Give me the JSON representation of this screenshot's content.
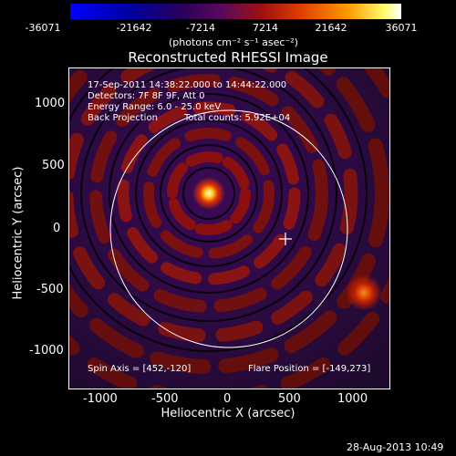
{
  "colorbar": {
    "ticks": [
      "-36071",
      "-21642",
      "-7214",
      "7214",
      "21642",
      "36071"
    ],
    "units": "(photons cm⁻² s⁻¹ asec⁻²)"
  },
  "title": "Reconstructed RHESSI Image",
  "annotations": {
    "time_range": "17-Sep-2011 14:38:22.000 to 14:44:22.000",
    "detectors": "Detectors: 7F 8F 9F, Att 0",
    "energy": "Energy Range: 6.0 - 25.0 keV",
    "method": "Back Projection",
    "counts": "Total counts: 5.92E+04",
    "spin_axis": "Spin Axis = [452,-120]",
    "flare_position": "Flare Position = [-149,273]"
  },
  "axes": {
    "xlabel": "Heliocentric X (arcsec)",
    "ylabel": "Heliocentric Y (arcsec)",
    "xticks": [
      "-1000",
      "-500",
      "0",
      "500",
      "1000"
    ],
    "yticks": [
      "1000",
      "500",
      "0",
      "-500",
      "-1000"
    ]
  },
  "footer": "28-Aug-2013 10:49"
}
